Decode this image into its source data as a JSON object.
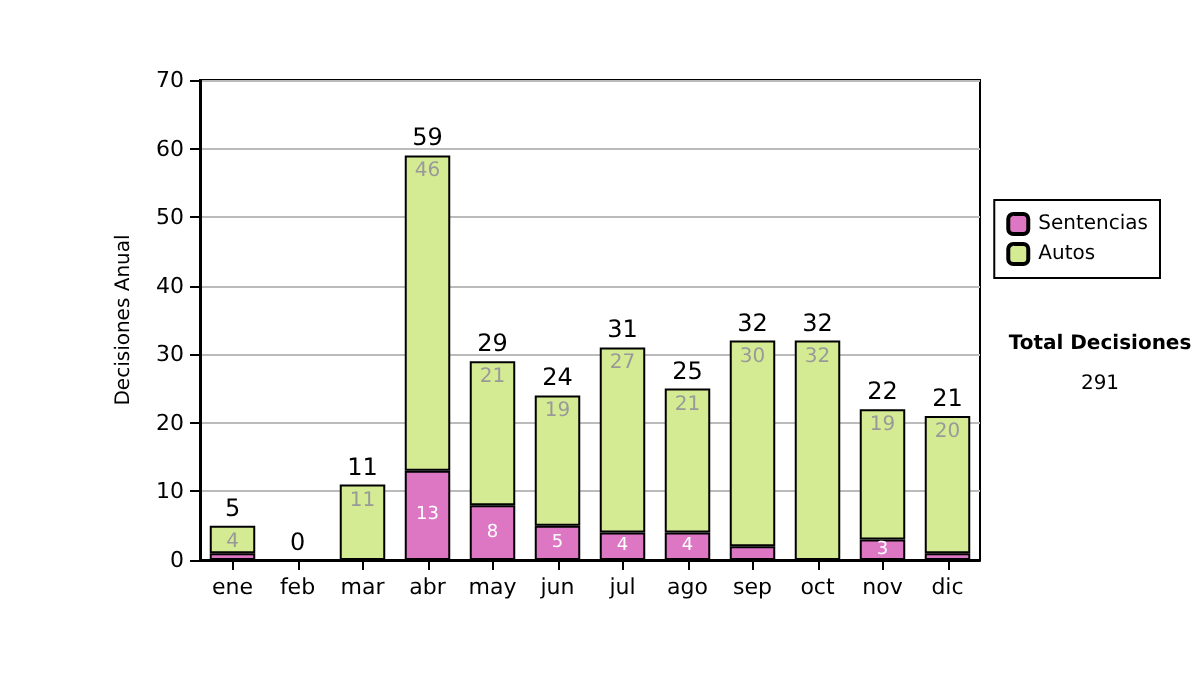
{
  "chart_data": {
    "type": "bar",
    "stacked": true,
    "ylabel": "Decisiones Anual",
    "categories": [
      "ene",
      "feb",
      "mar",
      "abr",
      "may",
      "jun",
      "jul",
      "ago",
      "sep",
      "oct",
      "nov",
      "dic"
    ],
    "series": [
      {
        "name": "Sentencias",
        "color": "#dd77c4",
        "values": [
          1,
          0,
          0,
          13,
          8,
          5,
          4,
          4,
          2,
          0,
          3,
          1
        ],
        "value_labels": [
          null,
          null,
          null,
          "13",
          "8",
          "5",
          "4",
          "4",
          null,
          null,
          "3",
          null
        ]
      },
      {
        "name": "Autos",
        "color": "#d4eb94",
        "values": [
          4,
          0,
          11,
          46,
          21,
          19,
          27,
          21,
          30,
          32,
          19,
          20
        ],
        "value_labels": [
          "4",
          null,
          "11",
          "46",
          "21",
          "19",
          "27",
          "21",
          "30",
          "32",
          "19",
          "20"
        ]
      }
    ],
    "totals": [
      "5",
      "0",
      "11",
      "59",
      "29",
      "24",
      "31",
      "25",
      "32",
      "32",
      "22",
      "21"
    ],
    "ylim": [
      0,
      70
    ],
    "yticks": [
      0,
      10,
      20,
      30,
      40,
      50,
      60,
      70
    ],
    "grid": "y",
    "legend": "right",
    "annotations": [
      "Total Decisiones",
      "291"
    ]
  }
}
